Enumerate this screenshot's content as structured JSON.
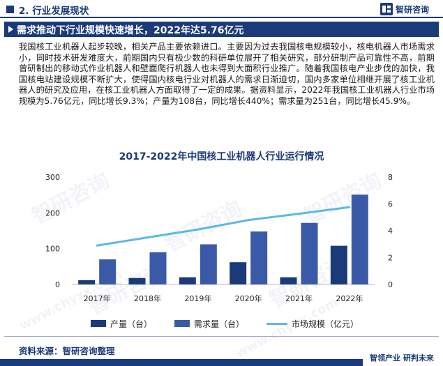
{
  "header": {
    "section": "2. 行业发展现状",
    "brand": "智研咨询"
  },
  "headline": "需求推动下行业规模快速增长，2022年达5.76亿元",
  "paragraph": "我国核工业机器人起步较晚，相关产品主要依赖进口。主要因为过去我国核电规模较小，核电机器人市场需求小，同时技术研发难度大，前期国内只有极少数的科研单位展开了相关研究，部分研制产品可靠性不高，前期曾研制出的移动式作业机器人和壁面爬行机器人也未得到大面积行业推广。随着我国核电产业步伐的加快，我国核电站建设规模不断扩大，使得国内核电行业对机器人的需求日渐迫切，国内多家单位相继开展了核工业机器人的研究及应用，在核工业机器人方面取得了一定的成果。据资料显示，2022年我国核工业机器人行业市场规模为5.76亿元，同比增长9.3%；产量为108台，同比增长440%；需求量为251台，同比增长45.9%。",
  "watermark": "智研咨询",
  "watermark_url": "www.chyxx.com",
  "chart_data": {
    "type": "bar",
    "title": "2017-2022年中国核工业机器人行业运行情况",
    "categories": [
      "2017年",
      "2018年",
      "2019年",
      "2020年",
      "2021年",
      "2022年"
    ],
    "series": [
      {
        "name": "产量（台）",
        "type": "bar",
        "axis": "left",
        "color": "#1a3a7a",
        "values": [
          12,
          18,
          20,
          62,
          20,
          108
        ]
      },
      {
        "name": "需求量（台）",
        "type": "bar",
        "axis": "left",
        "color": "#3a5aa8",
        "values": [
          70,
          90,
          112,
          148,
          172,
          251
        ]
      },
      {
        "name": "市场规模（亿元）",
        "type": "line",
        "axis": "right",
        "color": "#5bb8e8",
        "values": [
          2.9,
          3.5,
          4.1,
          4.8,
          5.27,
          5.76
        ]
      }
    ],
    "y_left": {
      "ticks": [
        "0",
        "100",
        "200",
        "300"
      ],
      "range": [
        0,
        300
      ]
    },
    "y_right": {
      "ticks": [
        "0",
        "2",
        "4",
        "6",
        "8"
      ],
      "range": [
        0,
        8
      ]
    },
    "grid": false,
    "legend_position": "bottom"
  },
  "source": "资料来源：智研咨询整理",
  "slogan": "智领产业  研判未来"
}
